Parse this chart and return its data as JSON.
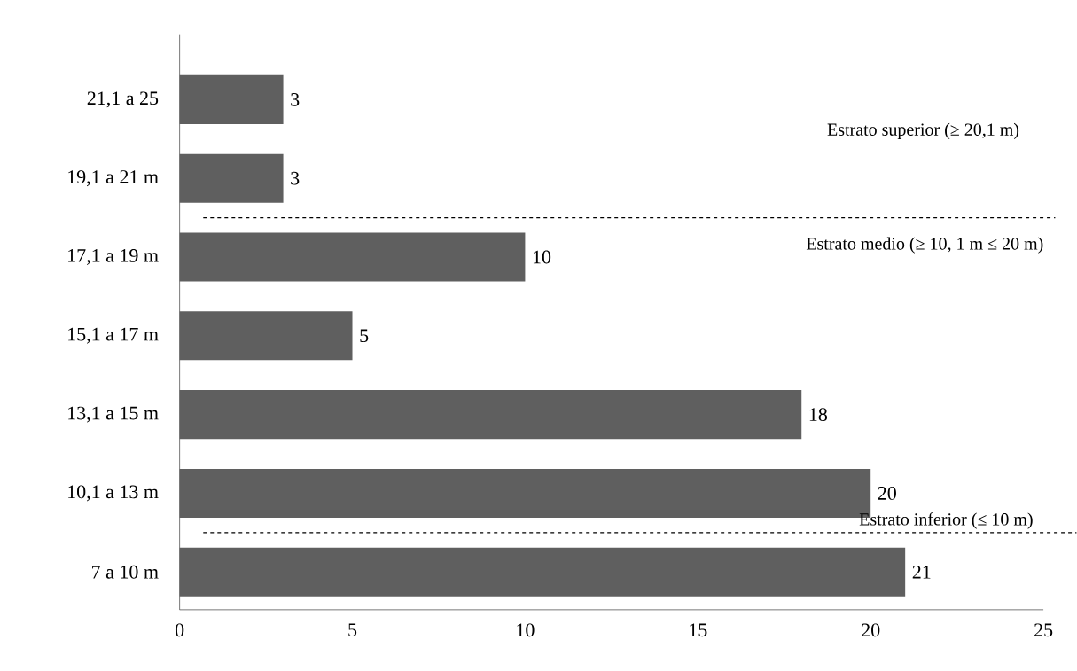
{
  "chart_data": {
    "type": "bar",
    "orientation": "horizontal",
    "categories": [
      "21,1 a 25",
      "19,1 a 21 m",
      "17,1 a 19 m",
      "15,1 a 17 m",
      "13,1 a 15 m",
      "10,1 a 13 m",
      "7 a 10 m"
    ],
    "values": [
      3,
      3,
      10,
      5,
      18,
      20,
      21
    ],
    "color": "#5f5f5f",
    "data_labels": true,
    "xlim": [
      0,
      25
    ],
    "xticks": [
      0,
      5,
      10,
      15,
      20,
      25
    ],
    "grid": false,
    "annotations": [
      "Estrato superior  (≥ 20,1 m)",
      "Estrato medio  (≥ 10, 1 m ≤ 20 m)",
      "Estrato inferior  (≤ 10 m)"
    ]
  }
}
